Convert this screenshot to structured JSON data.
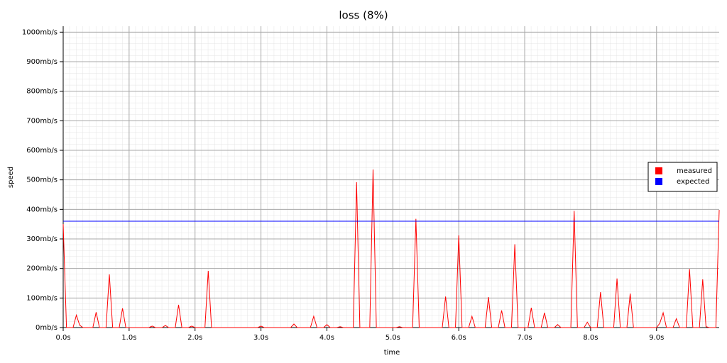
{
  "chart_data": {
    "type": "line",
    "title": "loss (8%)",
    "x_label": "time",
    "y_label": "speed",
    "xlim": [
      0,
      9.95
    ],
    "ylim": [
      0,
      1020
    ],
    "xticks": [
      {
        "value": 0,
        "label": "0.0s"
      },
      {
        "value": 1,
        "label": "1.0s"
      },
      {
        "value": 2,
        "label": "2.0s"
      },
      {
        "value": 3,
        "label": "3.0s"
      },
      {
        "value": 4,
        "label": "4.0s"
      },
      {
        "value": 5,
        "label": "5.0s"
      },
      {
        "value": 6,
        "label": "6.0s"
      },
      {
        "value": 7,
        "label": "7.0s"
      },
      {
        "value": 8,
        "label": "8.0s"
      },
      {
        "value": 9,
        "label": "9.0s"
      }
    ],
    "yticks": [
      {
        "value": 0,
        "label": "0mb/s"
      },
      {
        "value": 100,
        "label": "100mb/s"
      },
      {
        "value": 200,
        "label": "200mb/s"
      },
      {
        "value": 300,
        "label": "300mb/s"
      },
      {
        "value": 400,
        "label": "400mb/s"
      },
      {
        "value": 500,
        "label": "500mb/s"
      },
      {
        "value": 600,
        "label": "600mb/s"
      },
      {
        "value": 700,
        "label": "700mb/s"
      },
      {
        "value": 800,
        "label": "800mb/s"
      },
      {
        "value": 900,
        "label": "900mb/s"
      },
      {
        "value": 1000,
        "label": "1000mb/s"
      }
    ],
    "grid": true,
    "legend": "right",
    "x": [
      0,
      0.05,
      0.1,
      0.15,
      0.2,
      0.25,
      0.3,
      0.35,
      0.4,
      0.45,
      0.5,
      0.55,
      0.6,
      0.65,
      0.7,
      0.75,
      0.8,
      0.85,
      0.9,
      0.95,
      1,
      1.05,
      1.1,
      1.15,
      1.2,
      1.25,
      1.3,
      1.35,
      1.4,
      1.45,
      1.5,
      1.55,
      1.6,
      1.65,
      1.7,
      1.75,
      1.8,
      1.85,
      1.9,
      1.95,
      2,
      2.05,
      2.1,
      2.15,
      2.2,
      2.25,
      2.3,
      2.35,
      2.4,
      2.45,
      2.5,
      2.55,
      2.6,
      2.65,
      2.7,
      2.75,
      2.8,
      2.85,
      2.9,
      2.95,
      3,
      3.05,
      3.1,
      3.15,
      3.2,
      3.25,
      3.3,
      3.35,
      3.4,
      3.45,
      3.5,
      3.55,
      3.6,
      3.65,
      3.7,
      3.75,
      3.8,
      3.85,
      3.9,
      3.95,
      4,
      4.05,
      4.1,
      4.15,
      4.2,
      4.25,
      4.3,
      4.35,
      4.4,
      4.45,
      4.5,
      4.55,
      4.6,
      4.65,
      4.7,
      4.75,
      4.8,
      4.85,
      4.9,
      4.95,
      5,
      5.05,
      5.1,
      5.15,
      5.2,
      5.25,
      5.3,
      5.35,
      5.4,
      5.45,
      5.5,
      5.55,
      5.6,
      5.65,
      5.7,
      5.75,
      5.8,
      5.85,
      5.9,
      5.95,
      6,
      6.05,
      6.1,
      6.15,
      6.2,
      6.25,
      6.3,
      6.35,
      6.4,
      6.45,
      6.5,
      6.55,
      6.6,
      6.65,
      6.7,
      6.75,
      6.8,
      6.85,
      6.9,
      6.95,
      7,
      7.05,
      7.1,
      7.15,
      7.2,
      7.25,
      7.3,
      7.35,
      7.4,
      7.45,
      7.5,
      7.55,
      7.6,
      7.65,
      7.7,
      7.75,
      7.8,
      7.85,
      7.9,
      7.95,
      8,
      8.05,
      8.1,
      8.15,
      8.2,
      8.25,
      8.3,
      8.35,
      8.4,
      8.45,
      8.5,
      8.55,
      8.6,
      8.65,
      8.7,
      8.75,
      8.8,
      8.85,
      8.9,
      8.95,
      9,
      9.05,
      9.1,
      9.15,
      9.2,
      9.25,
      9.3,
      9.35,
      9.4,
      9.45,
      9.5,
      9.55,
      9.6,
      9.65,
      9.7,
      9.75,
      9.8,
      9.85,
      9.9,
      9.95
    ],
    "series": [
      {
        "name": "measured",
        "color": "#ff0000",
        "values": [
          350,
          0,
          0,
          0,
          42,
          8,
          0,
          0,
          0,
          0,
          52,
          0,
          0,
          0,
          180,
          0,
          0,
          0,
          65,
          0,
          0,
          0,
          0,
          0,
          0,
          0,
          0,
          5,
          0,
          0,
          0,
          7,
          0,
          0,
          0,
          77,
          0,
          0,
          0,
          5,
          0,
          0,
          0,
          0,
          192,
          0,
          0,
          0,
          0,
          0,
          0,
          0,
          0,
          0,
          0,
          0,
          0,
          0,
          0,
          0,
          5,
          0,
          0,
          0,
          0,
          0,
          0,
          0,
          0,
          0,
          12,
          0,
          0,
          0,
          0,
          0,
          38,
          0,
          0,
          0,
          10,
          0,
          0,
          0,
          3,
          0,
          0,
          0,
          0,
          492,
          0,
          0,
          0,
          0,
          535,
          0,
          0,
          0,
          0,
          0,
          0,
          0,
          3,
          0,
          0,
          0,
          0,
          368,
          0,
          0,
          0,
          0,
          0,
          0,
          0,
          0,
          105,
          0,
          0,
          0,
          312,
          0,
          0,
          0,
          38,
          0,
          0,
          0,
          0,
          103,
          0,
          0,
          0,
          58,
          0,
          0,
          0,
          282,
          0,
          0,
          0,
          0,
          67,
          0,
          0,
          0,
          50,
          0,
          0,
          0,
          10,
          0,
          0,
          0,
          0,
          395,
          0,
          0,
          0,
          18,
          0,
          0,
          0,
          120,
          0,
          0,
          0,
          0,
          166,
          0,
          0,
          0,
          115,
          0,
          0,
          0,
          0,
          0,
          0,
          0,
          0,
          15,
          50,
          0,
          0,
          0,
          30,
          0,
          0,
          0,
          198,
          0,
          0,
          0,
          163,
          3,
          0,
          0,
          0,
          398
        ]
      },
      {
        "name": "expected",
        "color": "#0000ff",
        "x": [
          0,
          9.95
        ],
        "values": [
          360,
          360
        ]
      }
    ]
  }
}
